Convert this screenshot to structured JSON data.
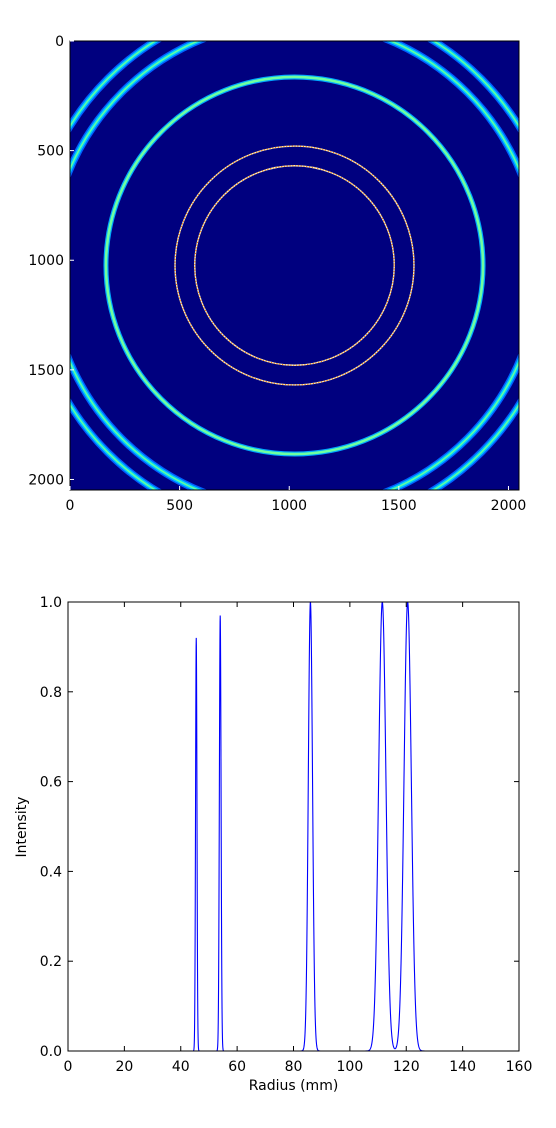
{
  "chart_data": [
    {
      "type": "heatmap",
      "title": "",
      "xlabel": "",
      "ylabel": "",
      "xlim": [
        0,
        2048
      ],
      "ylim": [
        2048,
        0
      ],
      "xticks": [
        0,
        500,
        1000,
        1500,
        2000
      ],
      "yticks": [
        0,
        500,
        1000,
        1500,
        2000
      ],
      "colormap": "jet",
      "background_color": "#00007f",
      "center": [
        1024,
        1024
      ],
      "rings": [
        {
          "radius": 455,
          "peak": 0.92,
          "style": "thin-noisy"
        },
        {
          "radius": 545,
          "peak": 0.97,
          "style": "thin-noisy"
        },
        {
          "radius": 860,
          "peak": 1.0,
          "style": "smooth"
        },
        {
          "radius": 1115,
          "peak": 1.0,
          "style": "broad"
        },
        {
          "radius": 1205,
          "peak": 1.0,
          "style": "broad"
        }
      ],
      "grid": false
    },
    {
      "type": "line",
      "title": "",
      "xlabel": "Radius (mm)",
      "ylabel": "Intensity",
      "xlim": [
        0,
        160
      ],
      "ylim": [
        0,
        1.0
      ],
      "xticks": [
        0,
        20,
        40,
        60,
        80,
        100,
        120,
        140,
        160
      ],
      "yticks": [
        "0.0",
        "0.2",
        "0.4",
        "0.6",
        "0.8",
        "1.0"
      ],
      "grid": false,
      "series": [
        {
          "color": "#0000ff",
          "peaks": [
            {
              "x": 45.5,
              "y": 0.92,
              "sigma": 0.25
            },
            {
              "x": 54.0,
              "y": 0.97,
              "sigma": 0.3
            },
            {
              "x": 86.0,
              "y": 1.0,
              "sigma": 0.75
            },
            {
              "x": 111.5,
              "y": 1.0,
              "sigma": 1.3
            },
            {
              "x": 120.5,
              "y": 1.0,
              "sigma": 1.3
            }
          ]
        }
      ]
    }
  ]
}
